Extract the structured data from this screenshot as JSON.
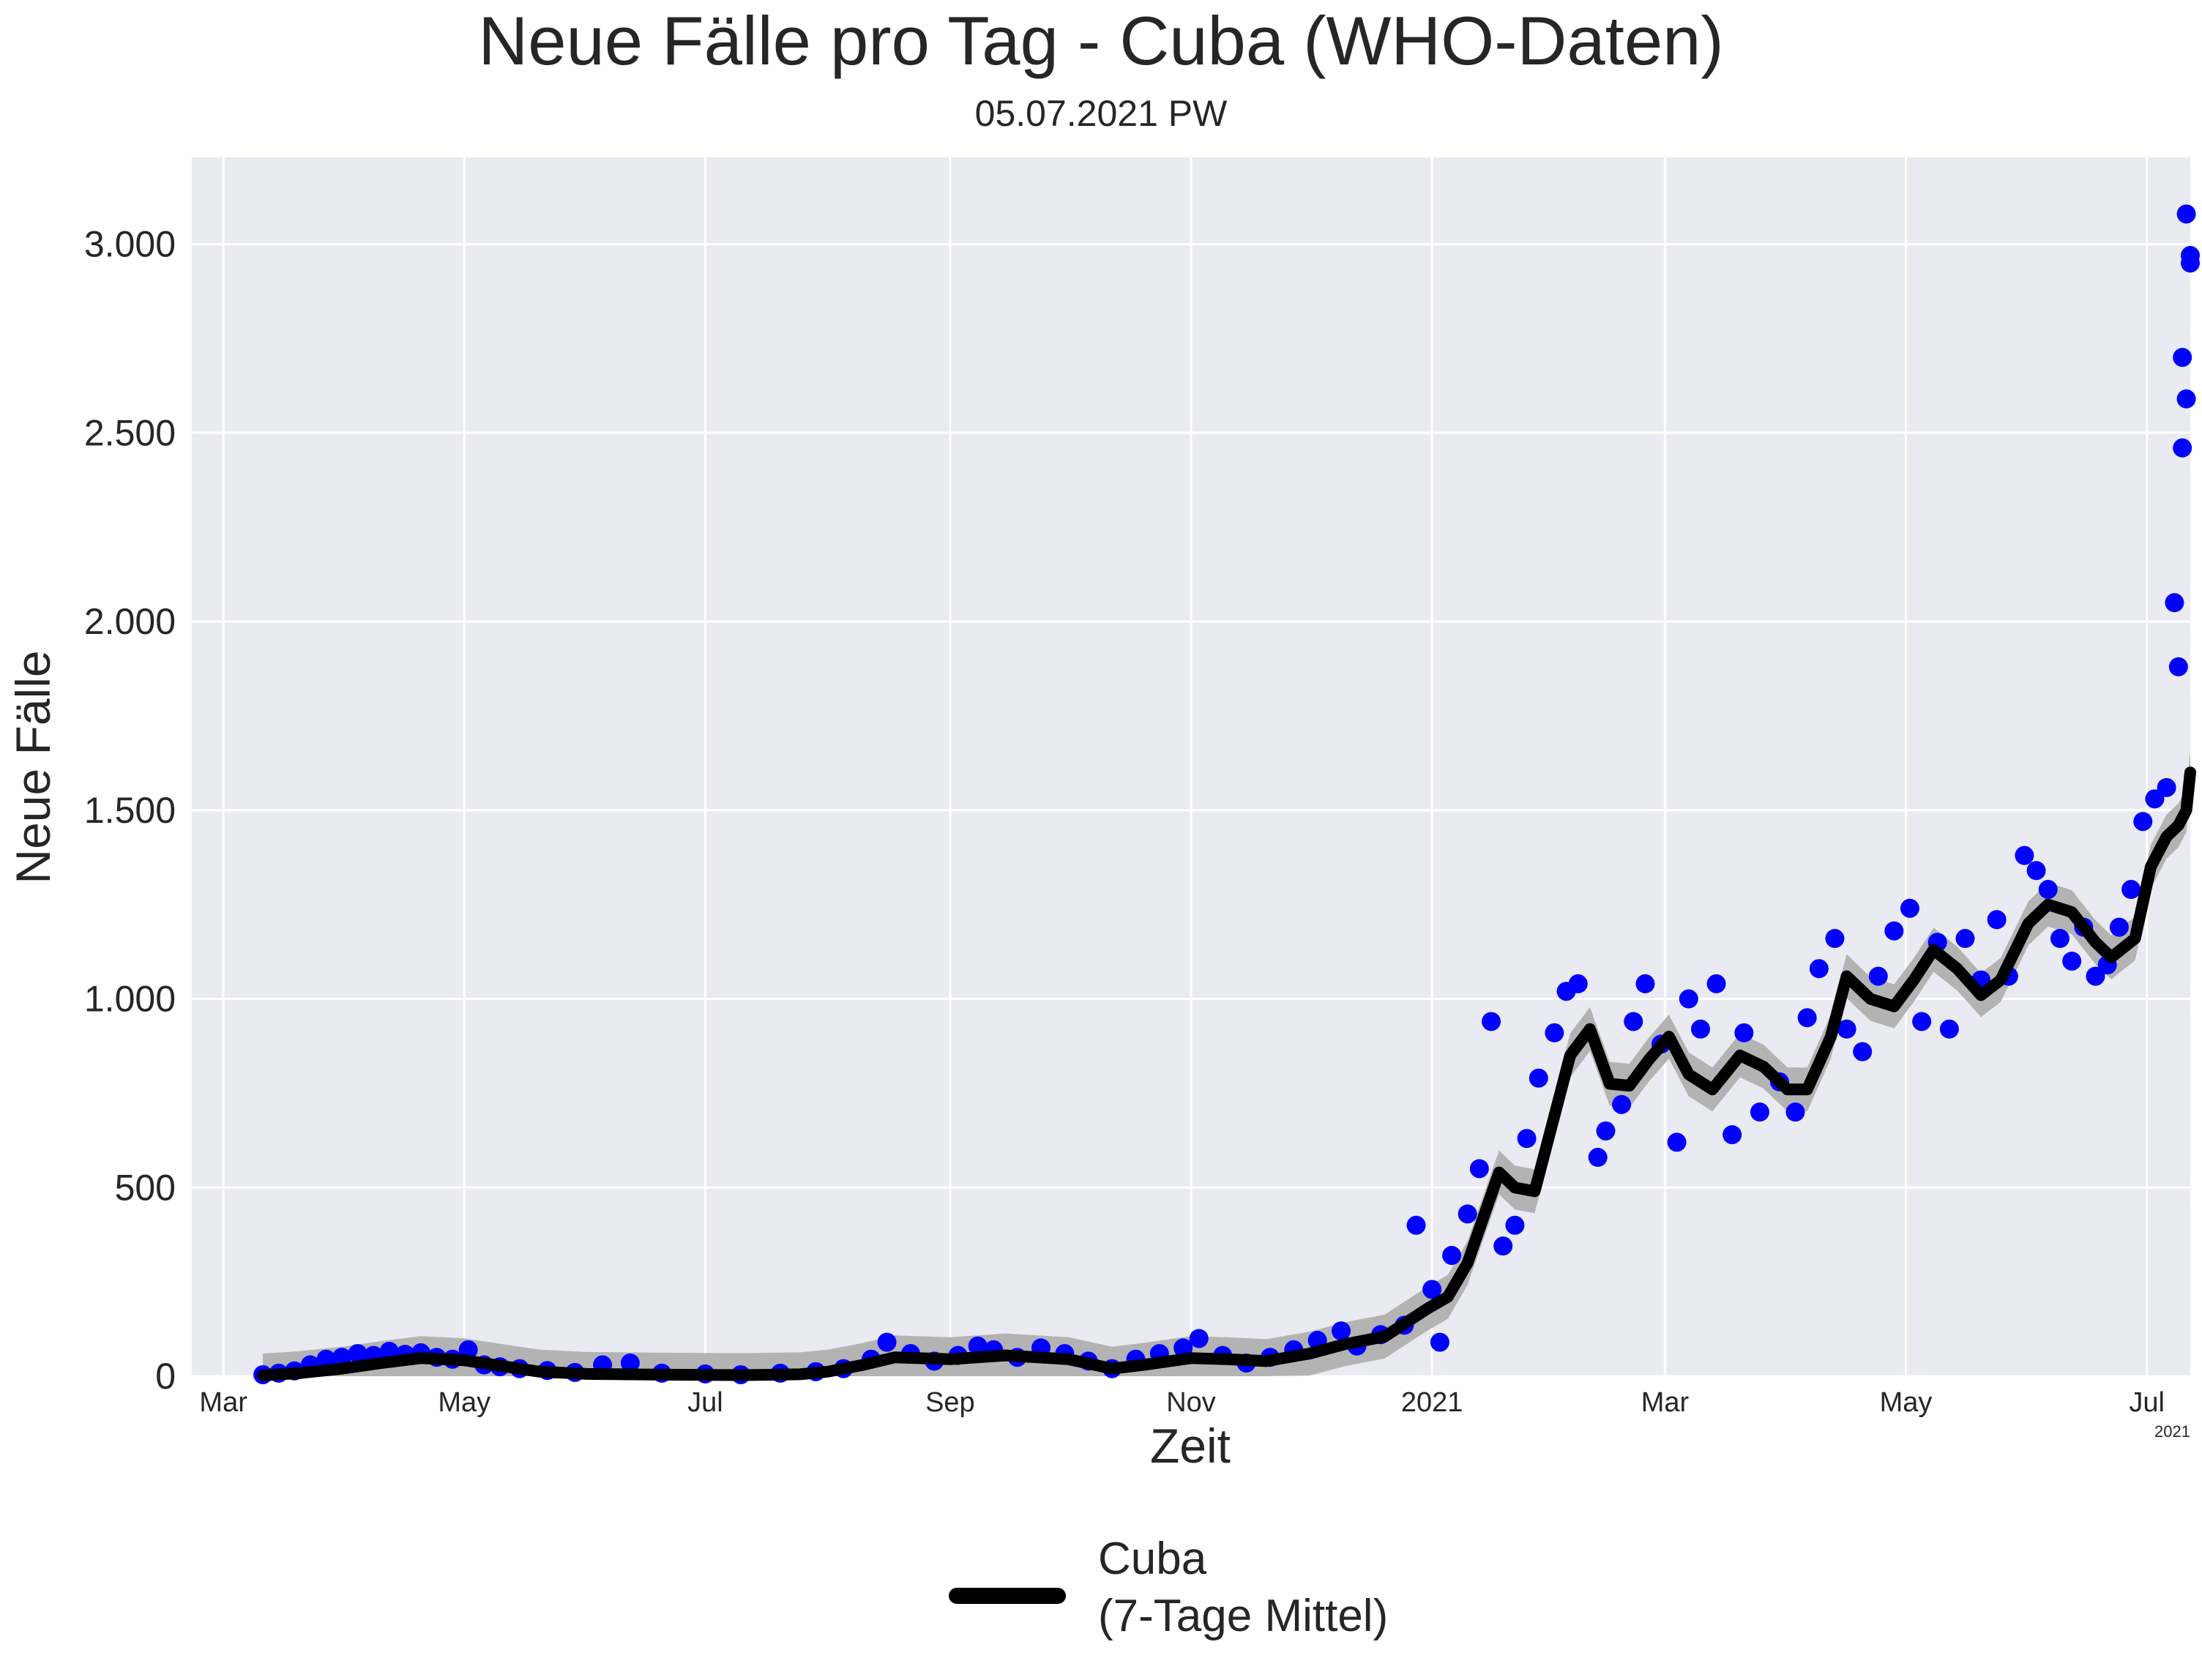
{
  "chart_data": {
    "type": "scatter",
    "title": "Neue Fälle pro Tag - Cuba (WHO-Daten)",
    "subtitle": "05.07.2021 PW",
    "xlabel": "Zeit",
    "ylabel": "Neue Fälle",
    "x_offset_label": "2021",
    "xlim": [
      "2020-02-22",
      "2021-07-12"
    ],
    "ylim": [
      0,
      3230
    ],
    "grid": true,
    "legend_position": "bottom-center",
    "colors": {
      "points": "#0000ff",
      "line": "#000000",
      "band": "#b3b3b3",
      "plot_background": "#eaeaf2",
      "grid": "#ffffff"
    },
    "x_ticks": [
      {
        "date": "2020-03-01",
        "label": "Mar"
      },
      {
        "date": "2020-05-01",
        "label": "May"
      },
      {
        "date": "2020-07-01",
        "label": "Jul"
      },
      {
        "date": "2020-09-01",
        "label": "Sep"
      },
      {
        "date": "2020-11-01",
        "label": "Nov"
      },
      {
        "date": "2021-01-01",
        "label": "2021"
      },
      {
        "date": "2021-03-01",
        "label": "Mar"
      },
      {
        "date": "2021-05-01",
        "label": "May"
      },
      {
        "date": "2021-07-01",
        "label": "Jul"
      }
    ],
    "y_ticks": [
      {
        "value": 0,
        "label": "0"
      },
      {
        "value": 500,
        "label": "500"
      },
      {
        "value": 1000,
        "label": "1.000"
      },
      {
        "value": 1500,
        "label": "1.500"
      },
      {
        "value": 2000,
        "label": "2.000"
      },
      {
        "value": 2500,
        "label": "2.500"
      },
      {
        "value": 3000,
        "label": "3.000"
      }
    ],
    "series": [
      {
        "name": "Cuba\n(7-Tage Mittel)",
        "kind": "line",
        "points": [
          [
            "2020-03-11",
            2
          ],
          [
            "2020-03-20",
            8
          ],
          [
            "2020-03-31",
            20
          ],
          [
            "2020-04-10",
            35
          ],
          [
            "2020-04-20",
            48
          ],
          [
            "2020-05-01",
            42
          ],
          [
            "2020-05-10",
            28
          ],
          [
            "2020-05-20",
            12
          ],
          [
            "2020-06-01",
            6
          ],
          [
            "2020-06-20",
            4
          ],
          [
            "2020-07-10",
            3
          ],
          [
            "2020-07-25",
            5
          ],
          [
            "2020-08-01",
            12
          ],
          [
            "2020-08-10",
            30
          ],
          [
            "2020-08-18",
            50
          ],
          [
            "2020-09-01",
            45
          ],
          [
            "2020-09-15",
            55
          ],
          [
            "2020-10-01",
            45
          ],
          [
            "2020-10-12",
            20
          ],
          [
            "2020-10-20",
            30
          ],
          [
            "2020-11-01",
            48
          ],
          [
            "2020-11-10",
            45
          ],
          [
            "2020-11-20",
            40
          ],
          [
            "2020-12-01",
            60
          ],
          [
            "2020-12-10",
            85
          ],
          [
            "2020-12-20",
            105
          ],
          [
            "2020-12-31",
            180
          ],
          [
            "2021-01-05",
            210
          ],
          [
            "2021-01-10",
            300
          ],
          [
            "2021-01-15",
            450
          ],
          [
            "2021-01-18",
            540
          ],
          [
            "2021-01-22",
            500
          ],
          [
            "2021-01-27",
            490
          ],
          [
            "2021-01-31",
            650
          ],
          [
            "2021-02-05",
            850
          ],
          [
            "2021-02-10",
            920
          ],
          [
            "2021-02-15",
            775
          ],
          [
            "2021-02-20",
            770
          ],
          [
            "2021-02-25",
            840
          ],
          [
            "2021-03-02",
            900
          ],
          [
            "2021-03-07",
            800
          ],
          [
            "2021-03-13",
            760
          ],
          [
            "2021-03-20",
            850
          ],
          [
            "2021-03-26",
            820
          ],
          [
            "2021-04-01",
            760
          ],
          [
            "2021-04-06",
            760
          ],
          [
            "2021-04-12",
            900
          ],
          [
            "2021-04-16",
            1060
          ],
          [
            "2021-04-22",
            1000
          ],
          [
            "2021-04-28",
            980
          ],
          [
            "2021-05-03",
            1050
          ],
          [
            "2021-05-08",
            1130
          ],
          [
            "2021-05-14",
            1080
          ],
          [
            "2021-05-20",
            1010
          ],
          [
            "2021-05-25",
            1050
          ],
          [
            "2021-06-01",
            1200
          ],
          [
            "2021-06-06",
            1250
          ],
          [
            "2021-06-12",
            1230
          ],
          [
            "2021-06-18",
            1150
          ],
          [
            "2021-06-22",
            1110
          ],
          [
            "2021-06-28",
            1160
          ],
          [
            "2021-07-02",
            1350
          ],
          [
            "2021-07-06",
            1430
          ],
          [
            "2021-07-09",
            1460
          ],
          [
            "2021-07-11",
            1500
          ],
          [
            "2021-07-12",
            1600
          ]
        ]
      }
    ],
    "daily_points": [
      [
        "2020-03-11",
        4
      ],
      [
        "2020-03-15",
        8
      ],
      [
        "2020-03-19",
        14
      ],
      [
        "2020-03-23",
        30
      ],
      [
        "2020-03-27",
        45
      ],
      [
        "2020-03-31",
        50
      ],
      [
        "2020-04-04",
        60
      ],
      [
        "2020-04-08",
        55
      ],
      [
        "2020-04-12",
        66
      ],
      [
        "2020-04-16",
        58
      ],
      [
        "2020-04-20",
        62
      ],
      [
        "2020-04-24",
        50
      ],
      [
        "2020-04-28",
        45
      ],
      [
        "2020-05-02",
        70
      ],
      [
        "2020-05-06",
        30
      ],
      [
        "2020-05-10",
        25
      ],
      [
        "2020-05-15",
        20
      ],
      [
        "2020-05-22",
        15
      ],
      [
        "2020-05-29",
        10
      ],
      [
        "2020-06-05",
        30
      ],
      [
        "2020-06-12",
        35
      ],
      [
        "2020-06-20",
        8
      ],
      [
        "2020-07-01",
        6
      ],
      [
        "2020-07-10",
        4
      ],
      [
        "2020-07-20",
        8
      ],
      [
        "2020-07-29",
        12
      ],
      [
        "2020-08-05",
        20
      ],
      [
        "2020-08-12",
        45
      ],
      [
        "2020-08-16",
        90
      ],
      [
        "2020-08-22",
        60
      ],
      [
        "2020-08-28",
        40
      ],
      [
        "2020-09-03",
        55
      ],
      [
        "2020-09-08",
        80
      ],
      [
        "2020-09-12",
        70
      ],
      [
        "2020-09-18",
        50
      ],
      [
        "2020-09-24",
        75
      ],
      [
        "2020-09-30",
        60
      ],
      [
        "2020-10-06",
        40
      ],
      [
        "2020-10-12",
        20
      ],
      [
        "2020-10-18",
        45
      ],
      [
        "2020-10-24",
        60
      ],
      [
        "2020-10-30",
        75
      ],
      [
        "2020-11-03",
        100
      ],
      [
        "2020-11-09",
        55
      ],
      [
        "2020-11-15",
        35
      ],
      [
        "2020-11-21",
        50
      ],
      [
        "2020-11-27",
        70
      ],
      [
        "2020-12-03",
        95
      ],
      [
        "2020-12-09",
        120
      ],
      [
        "2020-12-13",
        80
      ],
      [
        "2020-12-19",
        110
      ],
      [
        "2020-12-25",
        135
      ],
      [
        "2020-12-28",
        400
      ],
      [
        "2021-01-01",
        230
      ],
      [
        "2021-01-03",
        90
      ],
      [
        "2021-01-06",
        320
      ],
      [
        "2021-01-10",
        430
      ],
      [
        "2021-01-13",
        550
      ],
      [
        "2021-01-16",
        940
      ],
      [
        "2021-01-19",
        345
      ],
      [
        "2021-01-22",
        400
      ],
      [
        "2021-01-25",
        630
      ],
      [
        "2021-01-28",
        790
      ],
      [
        "2021-02-01",
        910
      ],
      [
        "2021-02-04",
        1020
      ],
      [
        "2021-02-07",
        1040
      ],
      [
        "2021-02-12",
        580
      ],
      [
        "2021-02-14",
        650
      ],
      [
        "2021-02-18",
        720
      ],
      [
        "2021-02-21",
        940
      ],
      [
        "2021-02-24",
        1040
      ],
      [
        "2021-02-28",
        880
      ],
      [
        "2021-03-04",
        620
      ],
      [
        "2021-03-07",
        1000
      ],
      [
        "2021-03-10",
        920
      ],
      [
        "2021-03-14",
        1040
      ],
      [
        "2021-03-18",
        640
      ],
      [
        "2021-03-21",
        910
      ],
      [
        "2021-03-25",
        700
      ],
      [
        "2021-03-30",
        780
      ],
      [
        "2021-04-03",
        700
      ],
      [
        "2021-04-06",
        950
      ],
      [
        "2021-04-09",
        1080
      ],
      [
        "2021-04-13",
        1160
      ],
      [
        "2021-04-16",
        920
      ],
      [
        "2021-04-20",
        860
      ],
      [
        "2021-04-24",
        1060
      ],
      [
        "2021-04-28",
        1180
      ],
      [
        "2021-05-02",
        1240
      ],
      [
        "2021-05-05",
        940
      ],
      [
        "2021-05-09",
        1150
      ],
      [
        "2021-05-12",
        920
      ],
      [
        "2021-05-16",
        1160
      ],
      [
        "2021-05-20",
        1050
      ],
      [
        "2021-05-24",
        1210
      ],
      [
        "2021-05-27",
        1060
      ],
      [
        "2021-05-31",
        1380
      ],
      [
        "2021-06-03",
        1340
      ],
      [
        "2021-06-06",
        1290
      ],
      [
        "2021-06-09",
        1160
      ],
      [
        "2021-06-12",
        1100
      ],
      [
        "2021-06-15",
        1190
      ],
      [
        "2021-06-18",
        1060
      ],
      [
        "2021-06-21",
        1090
      ],
      [
        "2021-06-24",
        1190
      ],
      [
        "2021-06-27",
        1290
      ],
      [
        "2021-06-30",
        1470
      ],
      [
        "2021-07-03",
        1530
      ],
      [
        "2021-07-06",
        1560
      ],
      [
        "2021-07-08",
        2050
      ],
      [
        "2021-07-09",
        1880
      ],
      [
        "2021-07-10",
        2460
      ],
      [
        "2021-07-10",
        2700
      ],
      [
        "2021-07-11",
        2590
      ],
      [
        "2021-07-11",
        3080
      ],
      [
        "2021-07-12",
        2970
      ],
      [
        "2021-07-12",
        2950
      ]
    ]
  }
}
